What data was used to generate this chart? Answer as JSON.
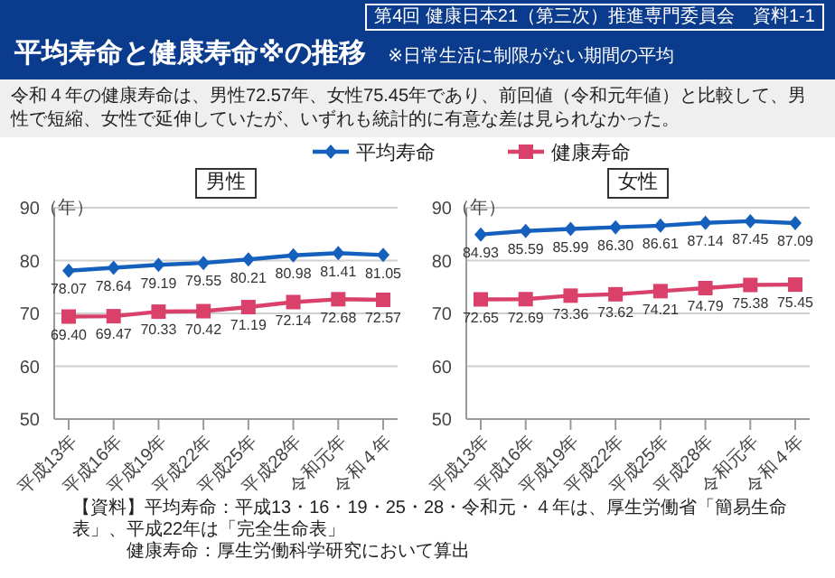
{
  "chart_data": [
    {
      "type": "line",
      "title": "男性",
      "ylabel": "（年）",
      "categories": [
        "平成13年",
        "平成16年",
        "平成19年",
        "平成22年",
        "平成25年",
        "平成28年",
        "令和元年",
        "令和４年"
      ],
      "ylim": [
        50,
        90
      ],
      "yticks": [
        50,
        60,
        70,
        80,
        90
      ],
      "grid": "y",
      "legend": "top",
      "series": [
        {
          "name": "平均寿命",
          "color": "#1560bd",
          "marker": "diamond",
          "values": [
            78.07,
            78.64,
            79.19,
            79.55,
            80.21,
            80.98,
            81.41,
            81.05
          ],
          "value_labels": [
            "78.07",
            "78.64",
            "79.19",
            "79.55",
            "80.21",
            "80.98",
            "81.41",
            "81.05"
          ]
        },
        {
          "name": "健康寿命",
          "color": "#d9416b",
          "marker": "square",
          "values": [
            69.4,
            69.47,
            70.33,
            70.42,
            71.19,
            72.14,
            72.68,
            72.57
          ],
          "value_labels": [
            "69.40",
            "69.47",
            "70.33",
            "70.42",
            "71.19",
            "72.14",
            "72.68",
            "72.57"
          ]
        }
      ],
      "annotations": [
        "第4回 健康日本21（第三次）推進専門委員会　資料1-1",
        "平均寿命と健康寿命※の推移",
        "※日常生活に制限がない期間の平均",
        "令和４年の健康寿命は、男性72.57年、女性75.45年であり、前回値（令和元年値）と比較して、男性で短縮、女性で延伸していたが、いずれも統計的に有意な差は見られなかった。",
        "【資料】平均寿命：平成13・16・19・25・28・令和元・４年は、厚生労働省「簡易生命表」、平成22年は「完全生命表」",
        "健康寿命：厚生労働科学研究において算出"
      ]
    },
    {
      "type": "line",
      "title": "女性",
      "ylabel": "（年）",
      "categories": [
        "平成13年",
        "平成16年",
        "平成19年",
        "平成22年",
        "平成25年",
        "平成28年",
        "令和元年",
        "令和４年"
      ],
      "ylim": [
        50,
        90
      ],
      "yticks": [
        50,
        60,
        70,
        80,
        90
      ],
      "grid": "y",
      "series": [
        {
          "color": "#1560bd",
          "marker": "diamond",
          "values": [
            84.93,
            85.59,
            85.99,
            86.3,
            86.61,
            87.14,
            87.45,
            87.09
          ],
          "value_labels": [
            "84.93",
            "85.59",
            "85.99",
            "86.30",
            "86.61",
            "87.14",
            "87.45",
            "87.09"
          ]
        },
        {
          "color": "#d9416b",
          "marker": "square",
          "values": [
            72.65,
            72.69,
            73.36,
            73.62,
            74.21,
            74.79,
            75.38,
            75.45
          ],
          "value_labels": [
            "72.65",
            "72.69",
            "73.36",
            "73.62",
            "74.21",
            "74.79",
            "75.38",
            "75.45"
          ]
        }
      ]
    }
  ]
}
